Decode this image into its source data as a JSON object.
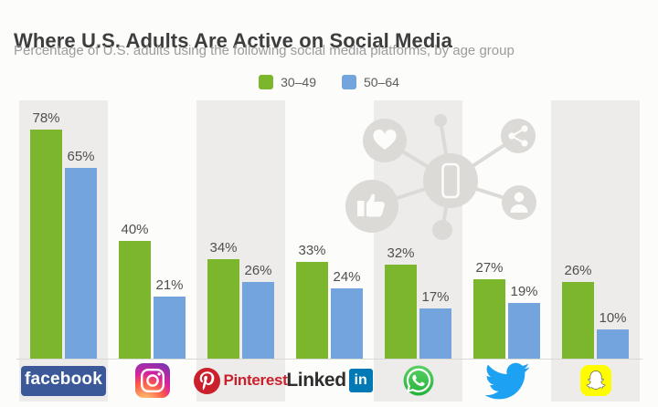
{
  "chart_data": {
    "type": "bar",
    "title": "Where U.S. Adults Are Active on Social Media",
    "subtitle": "Percentage of U.S. adults using the following social media platforms, by age group",
    "categories": [
      "Facebook",
      "Instagram",
      "Pinterest",
      "LinkedIn",
      "WhatsApp",
      "Twitter",
      "Snapchat"
    ],
    "series": [
      {
        "name": "30–49",
        "color": "#7cb62d",
        "values": [
          78,
          40,
          34,
          33,
          32,
          27,
          26
        ]
      },
      {
        "name": "50–64",
        "color": "#74a4dd",
        "values": [
          65,
          21,
          26,
          24,
          17,
          19,
          10
        ]
      }
    ],
    "unit": "%",
    "ylim": [
      0,
      100
    ],
    "grid": false,
    "axes_hidden": true,
    "data_labels": "above bars",
    "legend_position": "top-center"
  },
  "platforms": [
    {
      "key": "facebook",
      "logo_icon": "facebook-logo",
      "wordmark": "facebook",
      "brand_color": "#3b5998"
    },
    {
      "key": "instagram",
      "logo_icon": "instagram-logo"
    },
    {
      "key": "pinterest",
      "logo_icon": "pinterest-logo",
      "wordmark": "Pinterest",
      "brand_color": "#cb1f2c"
    },
    {
      "key": "linkedin",
      "logo_icon": "linkedin-logo",
      "wordmark": "Linked",
      "wordmark2": "in",
      "brand_color": "#0079b5"
    },
    {
      "key": "whatsapp",
      "logo_icon": "whatsapp-logo",
      "brand_color": "#25b83e"
    },
    {
      "key": "twitter",
      "logo_icon": "twitter-logo",
      "brand_color": "#1da1f2"
    },
    {
      "key": "snapchat",
      "logo_icon": "snapchat-logo",
      "brand_color": "#fffc00"
    }
  ],
  "style_colors": {
    "column_stripe": "#edecea",
    "baseline": "#d9d8d5",
    "label_text": "#4f4f4f",
    "title_text": "#3d3d3d",
    "subtitle_text": "#9c9c9c",
    "watermark": "#dbdad7"
  }
}
